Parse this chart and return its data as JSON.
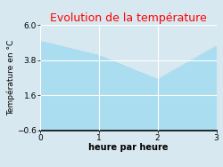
{
  "title": "Evolution de la température",
  "title_color": "#ff0000",
  "xlabel": "heure par heure",
  "ylabel": "Température en °C",
  "x": [
    0,
    1,
    2,
    3
  ],
  "y": [
    5.0,
    4.1,
    2.6,
    4.7
  ],
  "ylim": [
    -0.6,
    6.0
  ],
  "xlim": [
    0,
    3
  ],
  "yticks": [
    -0.6,
    1.6,
    3.8,
    6.0
  ],
  "xticks": [
    0,
    1,
    2,
    3
  ],
  "line_color": "#87CEEB",
  "fill_color": "#aaddf0",
  "background_color": "#d8e8f0",
  "grid_color": "#ffffff",
  "title_fontsize": 9,
  "label_fontsize": 7,
  "tick_fontsize": 6.5
}
